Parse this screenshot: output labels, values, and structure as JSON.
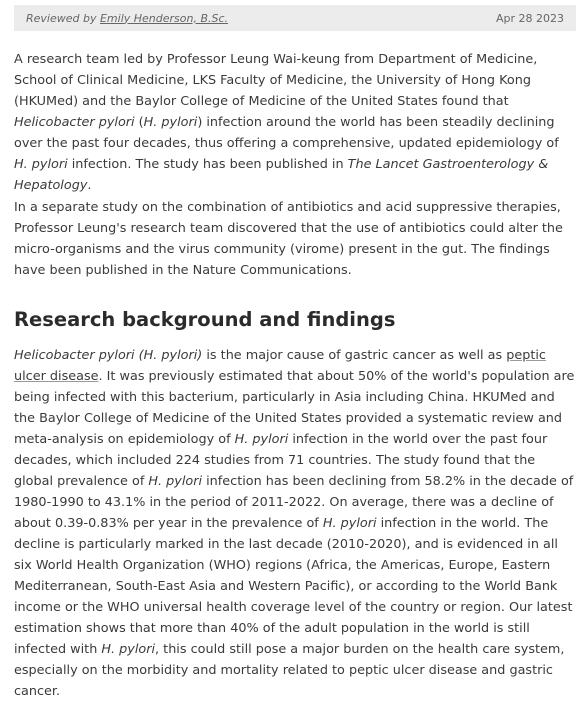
{
  "review": {
    "prefix": "Reviewed by ",
    "reviewer": "Emily Henderson, B.Sc.",
    "date": "Apr 28 2023"
  },
  "paragraph1": {
    "t1": "A research team led by Professor Leung Wai-keung from Department of Medicine, School of Clinical Medicine, LKS Faculty of Medicine, the University of Hong Kong (HKUMed) and the Baylor College of Medicine of the United States found that ",
    "e1": "Helicobacter pylori",
    "t2": " (",
    "e2": "H. pylori",
    "t3": ") infection around the world has been steadily declining over the past four decades, thus offering a comprehensive, updated epidemiology of ",
    "e3": "H. pylori",
    "t4": " infection. The study has been published in ",
    "e4": "The Lancet Gastroenterology & Hepatology",
    "t5": "."
  },
  "paragraph2": {
    "text": "In a separate study on the combination of antibiotics and acid suppressive therapies, Professor Leung's research team discovered that the use of antibiotics could alter the micro-organisms and the virus community (virome) present in the gut. The findings have been published in the Nature Communications."
  },
  "heading": "Research background and findings",
  "paragraph3": {
    "e1": "Helicobacter pylori (H. pylori)",
    "t1": " is the major cause of gastric cancer as well as ",
    "link": "peptic ulcer disease",
    "t2": ". It was previously estimated that about 50% of the world's population are being infected with this bacterium, particularly in Asia including China. HKUMed and the Baylor College of Medicine of the United States provided a systematic review and meta-analysis on epidemiology of ",
    "e2": "H. pylori",
    "t3": " infection in the world over the past four decades, which included 224 studies from 71 countries. The study found that the global prevalence of ",
    "e3": "H. pylori",
    "t4": " infection has been declining from 58.2% in the decade of 1980-1990 to 43.1% in the period of 2011-2022. On average, there was a decline of about 0.39-0.83% per year in the prevalence of ",
    "e4": "H. pylori",
    "t5": " infection in the world. The decline is particularly marked in the last decade (2010-2020), and is evidenced in all six World Health Organization (WHO) regions (Africa, the Americas, Europe, Eastern Mediterranean, South-East Asia and Western Pacific), or according to the World Bank income or the WHO universal health coverage level of the country or region. Our latest estimation shows that more than 40% of the adult population in the world is still infected with ",
    "e5": "H. pylori",
    "t6": ", this could still pose a major burden on the health care system, especially on the morbidity and mortality related to peptic ulcer disease and gastric cancer."
  }
}
